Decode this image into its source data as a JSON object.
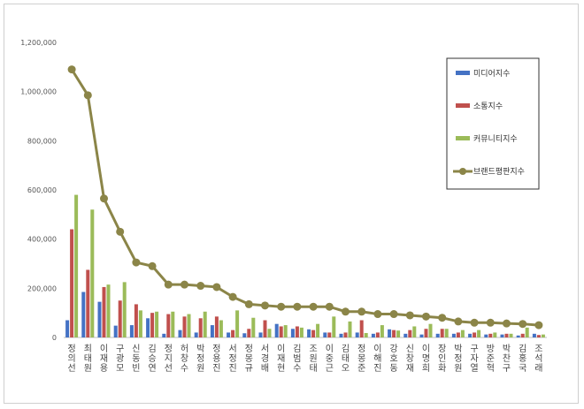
{
  "chart_data": {
    "type": "bar",
    "title": "",
    "xlabel": "",
    "ylabel": "",
    "ylim": [
      0,
      1200000
    ],
    "yticks": [
      "0",
      "200,000",
      "400,000",
      "600,000",
      "800,000",
      "1,000,000",
      "1,200,000"
    ],
    "grid": false,
    "legend_position": "right",
    "categories": [
      "정의선",
      "최태원",
      "이재용",
      "구광모",
      "신동빈",
      "김승연",
      "정지선",
      "허창수",
      "박정원",
      "정용진",
      "서정진",
      "정몽규",
      "서경배",
      "이재현",
      "김범수",
      "조원태",
      "이중근",
      "김태오",
      "정몽준",
      "이해진",
      "강호동",
      "신창재",
      "이명희",
      "장인화",
      "박정원",
      "구자열",
      "방준혁",
      "박찬구",
      "김홍국",
      "조석래"
    ],
    "series": [
      {
        "name": "미디어지수",
        "color": "#4472c4",
        "type": "bar",
        "values": [
          70000,
          185000,
          145000,
          48000,
          50000,
          78000,
          15000,
          30000,
          20000,
          50000,
          20000,
          17000,
          20000,
          55000,
          35000,
          33000,
          20000,
          15000,
          20000,
          15000,
          33000,
          15000,
          12000,
          15000,
          15000,
          15000,
          12000,
          12000,
          8000,
          15000
        ]
      },
      {
        "name": "소통지수",
        "color": "#c0504d",
        "type": "bar",
        "values": [
          440000,
          275000,
          205000,
          150000,
          135000,
          100000,
          95000,
          85000,
          78000,
          85000,
          30000,
          35000,
          70000,
          45000,
          45000,
          30000,
          20000,
          20000,
          70000,
          20000,
          30000,
          30000,
          35000,
          35000,
          20000,
          20000,
          15000,
          15000,
          15000,
          10000
        ]
      },
      {
        "name": "커뮤니티지수",
        "color": "#9bbb59",
        "type": "bar",
        "values": [
          580000,
          520000,
          215000,
          225000,
          110000,
          105000,
          105000,
          95000,
          105000,
          70000,
          110000,
          80000,
          35000,
          50000,
          40000,
          55000,
          85000,
          65000,
          18000,
          50000,
          28000,
          45000,
          55000,
          35000,
          30000,
          30000,
          20000,
          15000,
          40000,
          12000
        ]
      },
      {
        "name": "브랜드평판지수",
        "color": "#8b8548",
        "type": "line",
        "values": [
          1090000,
          985000,
          565000,
          430000,
          305000,
          290000,
          215000,
          215000,
          210000,
          205000,
          165000,
          135000,
          130000,
          125000,
          125000,
          125000,
          125000,
          105000,
          105000,
          95000,
          95000,
          90000,
          85000,
          80000,
          65000,
          60000,
          60000,
          57000,
          55000,
          50000
        ]
      }
    ]
  }
}
